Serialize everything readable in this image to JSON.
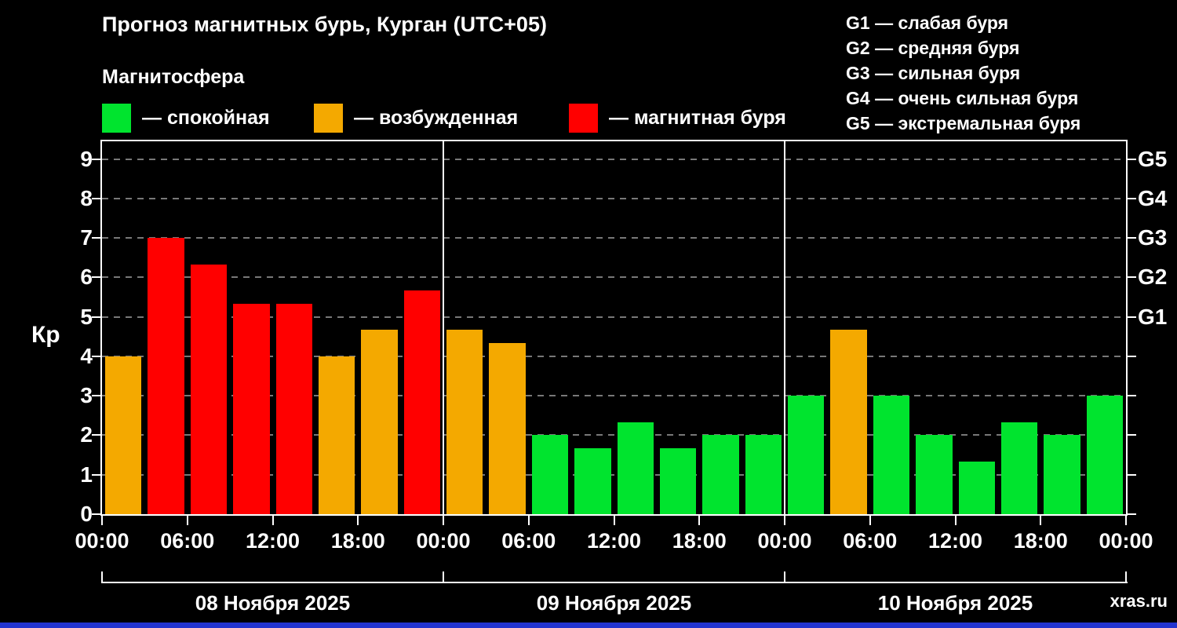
{
  "header": {
    "title": "Прогноз магнитных бурь, Курган (UTC+05)",
    "subtitle": "Магнитосфера"
  },
  "legend": {
    "items": [
      {
        "name": "quiet",
        "label": "— спокойная",
        "color": "#00e42e"
      },
      {
        "name": "excited",
        "label": "— возбужденная",
        "color": "#f4a900"
      },
      {
        "name": "storm",
        "label": "— магнитная буря",
        "color": "#ff0000"
      }
    ]
  },
  "storm_scale": {
    "items": [
      "G1 — слабая буря",
      "G2 — средняя буря",
      "G3 — сильная буря",
      "G4 — очень сильная буря",
      "G5 — экстремальная буря"
    ]
  },
  "watermark": "xras.ru",
  "colors": {
    "quiet": "#00e42e",
    "excited": "#f4a900",
    "storm": "#ff0000",
    "background": "#000000",
    "axis": "#ffffff",
    "grid": "#787878",
    "footer_strip": "#2334d0"
  },
  "chart_data": {
    "type": "bar",
    "title": "Прогноз магнитных бурь, Курган (UTC+05)",
    "ylabel": "Кр",
    "ylim": [
      0,
      9.45
    ],
    "grid": "horizontal dashed at integer Kp levels",
    "legend_position": "top",
    "yticks": [
      0,
      1,
      2,
      3,
      4,
      5,
      6,
      7,
      8,
      9
    ],
    "right_axis_ticks": [
      {
        "kp": 5,
        "label": "G1"
      },
      {
        "kp": 6,
        "label": "G2"
      },
      {
        "kp": 7,
        "label": "G3"
      },
      {
        "kp": 8,
        "label": "G4"
      },
      {
        "kp": 9,
        "label": "G5"
      }
    ],
    "x_tick_labels": [
      "00:00",
      "06:00",
      "12:00",
      "18:00",
      "00:00",
      "06:00",
      "12:00",
      "18:00",
      "00:00",
      "06:00",
      "12:00",
      "18:00",
      "00:00"
    ],
    "day_labels": [
      "08 Ноября 2025",
      "09 Ноября 2025",
      "10 Ноября 2025"
    ],
    "interval_hours": 3,
    "thresholds": {
      "storm_min_kp": 5,
      "excited_min_kp": 3.67
    },
    "kp_values": [
      4.0,
      7.0,
      6.33,
      5.33,
      5.33,
      4.0,
      4.67,
      5.67,
      4.67,
      4.33,
      2.0,
      1.67,
      2.33,
      1.67,
      2.0,
      2.0,
      3.0,
      4.67,
      3.0,
      2.0,
      1.33,
      2.33,
      2.0,
      3.0
    ]
  }
}
